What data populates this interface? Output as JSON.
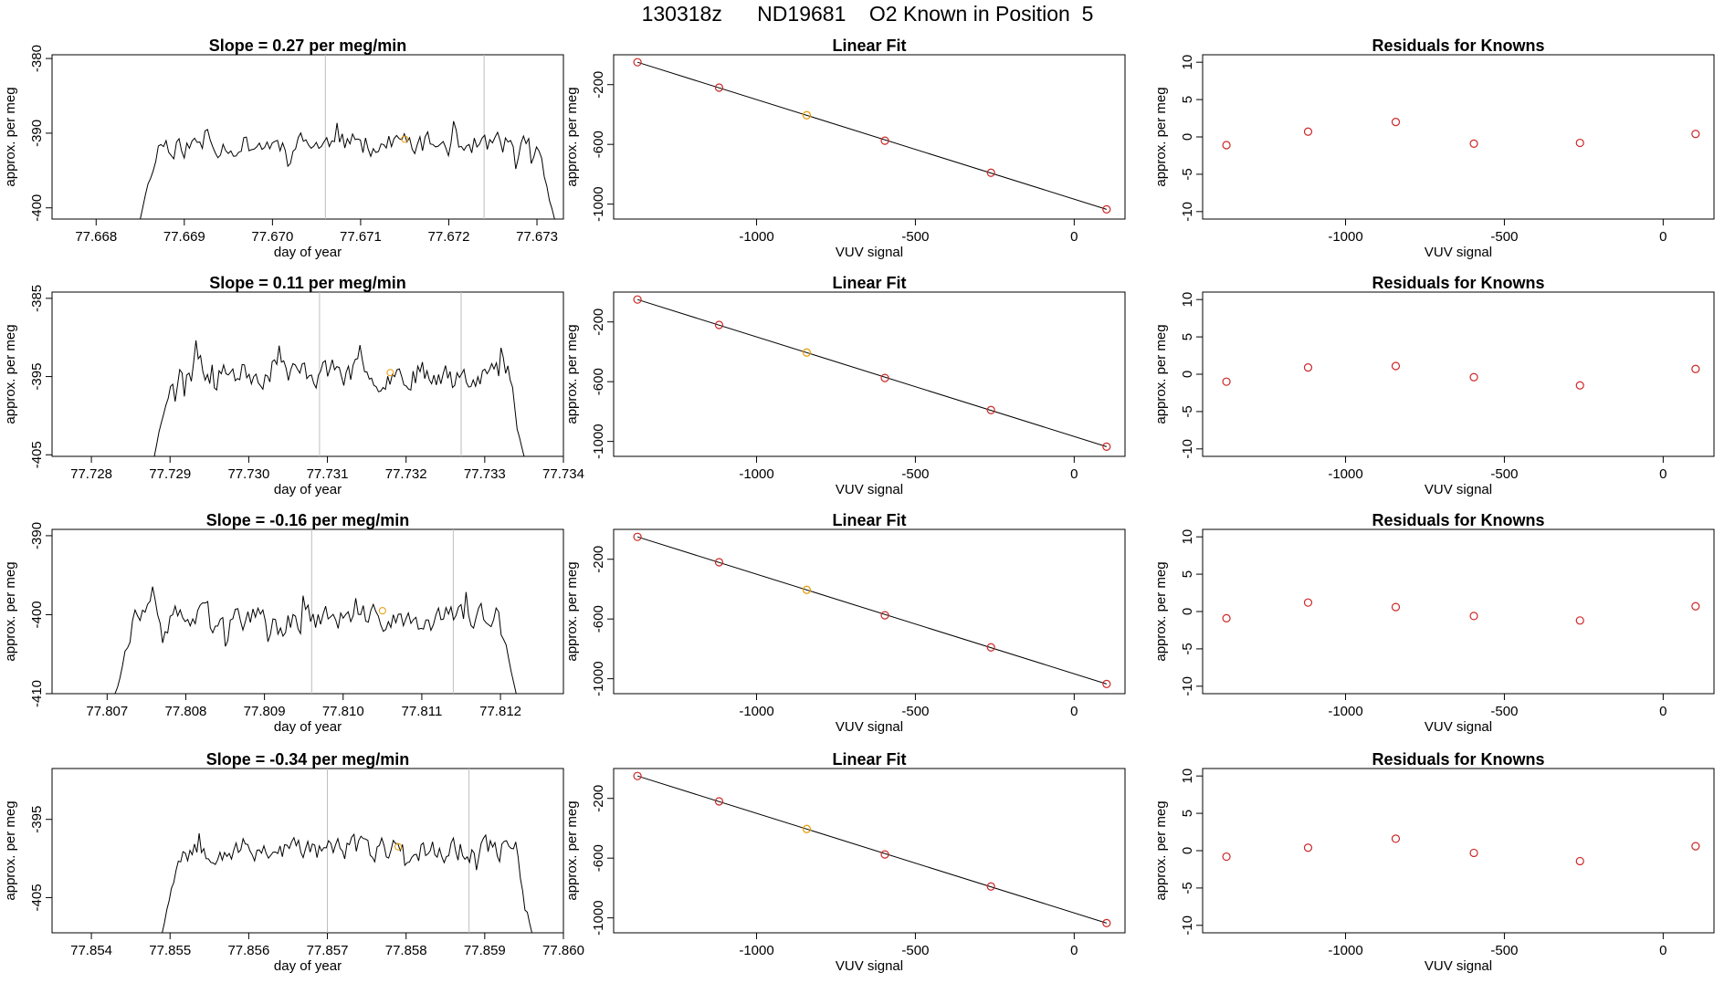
{
  "page_title": "130318z      ND19681    O2 Known in Position  5",
  "colors": {
    "line": "#000000",
    "guide": "#bebebe",
    "red_point": "#cd2626",
    "orange_point": "#e69a00"
  },
  "chart_data": [
    {
      "type": "line",
      "row": 1,
      "column": 1,
      "title": "Slope =  0.27  per meg/min",
      "xlabel": "day of year",
      "ylabel": "approx. per meg",
      "xlim": [
        77.6675,
        77.6733
      ],
      "ylim": [
        -401.5,
        -379.5
      ],
      "x_ticks": [
        77.668,
        77.669,
        77.67,
        77.671,
        77.672,
        77.673
      ],
      "x_tick_labels": [
        "77.668",
        "77.669",
        "77.670",
        "77.671",
        "77.672",
        "77.673"
      ],
      "y_ticks": [
        -380,
        -390,
        -400
      ],
      "y_tick_labels": [
        "-380",
        "-390",
        "-400"
      ],
      "trace_start": 77.6685,
      "trace_end": 77.6732,
      "trace_level": -391.5,
      "trace_edge_start": -401.5,
      "trace_edge_end": -401.5,
      "trace_amplitude": 1.8,
      "trace_seed": 11,
      "vlines": [
        77.6706,
        77.6724
      ],
      "marker": {
        "x": 77.6715,
        "y": -390.8
      }
    },
    {
      "type": "scatter",
      "row": 1,
      "column": 2,
      "title": "Linear Fit",
      "xlabel": "VUV signal",
      "ylabel": "approx. per meg",
      "xlim": [
        -1450,
        160
      ],
      "ylim": [
        -1100,
        0
      ],
      "x_ticks": [
        -1000,
        -500,
        0
      ],
      "x_tick_labels": [
        "-1000",
        "-500",
        "0"
      ],
      "y_ticks": [
        -200,
        -600,
        -1000
      ],
      "y_tick_labels": [
        "-200",
        "-600",
        "-1000"
      ],
      "points": [
        [
          -1375,
          -50
        ],
        [
          -1118,
          -220
        ],
        [
          -842,
          -405
        ],
        [
          -596,
          -575
        ],
        [
          -262,
          -790
        ],
        [
          102,
          -1035
        ]
      ],
      "point_colors": [
        "red",
        "red",
        "orange",
        "red",
        "red",
        "red"
      ],
      "fit_line": [
        [
          -1375,
          -50
        ],
        [
          102,
          -1035
        ]
      ]
    },
    {
      "type": "scatter",
      "row": 1,
      "column": 3,
      "title": "Residuals for Knowns",
      "xlabel": "VUV signal",
      "ylabel": "approx. per meg",
      "xlim": [
        -1450,
        160
      ],
      "ylim": [
        -11,
        11
      ],
      "x_ticks": [
        -1000,
        -500,
        0
      ],
      "x_tick_labels": [
        "-1000",
        "-500",
        "0"
      ],
      "y_ticks": [
        10,
        5,
        0,
        -5,
        -10
      ],
      "y_tick_labels": [
        "10",
        "5",
        "0",
        "-5",
        "-10"
      ],
      "points": [
        [
          -1375,
          -1.1
        ],
        [
          -1118,
          0.7
        ],
        [
          -842,
          2.0
        ],
        [
          -596,
          -0.9
        ],
        [
          -262,
          -0.8
        ],
        [
          102,
          0.4
        ]
      ],
      "point_colors": [
        "red",
        "red",
        "red",
        "red",
        "red",
        "red"
      ]
    },
    {
      "type": "line",
      "row": 2,
      "column": 1,
      "title": "Slope =  0.11  per meg/min",
      "xlabel": "day of year",
      "ylabel": "approx. per meg",
      "xlim": [
        77.7275,
        77.734
      ],
      "ylim": [
        -405.2,
        -384.2
      ],
      "x_ticks": [
        77.728,
        77.729,
        77.73,
        77.731,
        77.732,
        77.733,
        77.734
      ],
      "x_tick_labels": [
        "77.728",
        "77.729",
        "77.730",
        "77.731",
        "77.732",
        "77.733",
        "77.734"
      ],
      "y_ticks": [
        -385,
        -395,
        -405
      ],
      "y_tick_labels": [
        "-385",
        "-395",
        "-405"
      ],
      "trace_start": 77.7288,
      "trace_end": 77.7335,
      "trace_level": -394.5,
      "trace_edge_start": -405.2,
      "trace_edge_end": -405.2,
      "trace_amplitude": 1.9,
      "trace_seed": 23,
      "vlines": [
        77.7309,
        77.7327
      ],
      "marker": {
        "x": 77.7318,
        "y": -394.5
      }
    },
    {
      "type": "scatter",
      "row": 2,
      "column": 2,
      "title": "Linear Fit",
      "xlabel": "VUV signal",
      "ylabel": "approx. per meg",
      "xlim": [
        -1450,
        160
      ],
      "ylim": [
        -1100,
        0
      ],
      "x_ticks": [
        -1000,
        -500,
        0
      ],
      "x_tick_labels": [
        "-1000",
        "-500",
        "0"
      ],
      "y_ticks": [
        -200,
        -600,
        -1000
      ],
      "y_tick_labels": [
        "-200",
        "-600",
        "-1000"
      ],
      "points": [
        [
          -1375,
          -50
        ],
        [
          -1118,
          -220
        ],
        [
          -842,
          -405
        ],
        [
          -596,
          -575
        ],
        [
          -262,
          -790
        ],
        [
          102,
          -1035
        ]
      ],
      "point_colors": [
        "red",
        "red",
        "orange",
        "red",
        "red",
        "red"
      ],
      "fit_line": [
        [
          -1375,
          -50
        ],
        [
          102,
          -1035
        ]
      ]
    },
    {
      "type": "scatter",
      "row": 2,
      "column": 3,
      "title": "Residuals for Knowns",
      "xlabel": "VUV signal",
      "ylabel": "approx. per meg",
      "xlim": [
        -1450,
        160
      ],
      "ylim": [
        -11,
        11
      ],
      "x_ticks": [
        -1000,
        -500,
        0
      ],
      "x_tick_labels": [
        "-1000",
        "-500",
        "0"
      ],
      "y_ticks": [
        10,
        5,
        0,
        -5,
        -10
      ],
      "y_tick_labels": [
        "10",
        "5",
        "0",
        "-5",
        "-10"
      ],
      "points": [
        [
          -1375,
          -1.0
        ],
        [
          -1118,
          0.9
        ],
        [
          -842,
          1.1
        ],
        [
          -596,
          -0.4
        ],
        [
          -262,
          -1.5
        ],
        [
          102,
          0.7
        ]
      ],
      "point_colors": [
        "red",
        "red",
        "red",
        "red",
        "red",
        "red"
      ]
    },
    {
      "type": "line",
      "row": 3,
      "column": 1,
      "title": "Slope =  -0.16  per meg/min",
      "xlabel": "day of year",
      "ylabel": "approx. per meg",
      "xlim": [
        77.8063,
        77.8128
      ],
      "ylim": [
        -410,
        -389.2
      ],
      "x_ticks": [
        77.807,
        77.808,
        77.809,
        77.81,
        77.811,
        77.812
      ],
      "x_tick_labels": [
        "77.807",
        "77.808",
        "77.809",
        "77.810",
        "77.811",
        "77.812"
      ],
      "y_ticks": [
        -390,
        -400,
        -410
      ],
      "y_tick_labels": [
        "-390",
        "-400",
        "-410"
      ],
      "trace_start": 77.8071,
      "trace_end": 77.8122,
      "trace_level": -400.5,
      "trace_edge_start": -410,
      "trace_edge_end": -410,
      "trace_amplitude": 1.9,
      "trace_seed": 37,
      "vlines": [
        77.8096,
        77.8114
      ],
      "marker": {
        "x": 77.8105,
        "y": -399.5
      }
    },
    {
      "type": "scatter",
      "row": 3,
      "column": 2,
      "title": "Linear Fit",
      "xlabel": "VUV signal",
      "ylabel": "approx. per meg",
      "xlim": [
        -1450,
        160
      ],
      "ylim": [
        -1100,
        0
      ],
      "x_ticks": [
        -1000,
        -500,
        0
      ],
      "x_tick_labels": [
        "-1000",
        "-500",
        "0"
      ],
      "y_ticks": [
        -200,
        -600,
        -1000
      ],
      "y_tick_labels": [
        "-200",
        "-600",
        "-1000"
      ],
      "points": [
        [
          -1375,
          -50
        ],
        [
          -1118,
          -220
        ],
        [
          -842,
          -405
        ],
        [
          -596,
          -575
        ],
        [
          -262,
          -790
        ],
        [
          102,
          -1035
        ]
      ],
      "point_colors": [
        "red",
        "red",
        "orange",
        "red",
        "red",
        "red"
      ],
      "fit_line": [
        [
          -1375,
          -50
        ],
        [
          102,
          -1035
        ]
      ]
    },
    {
      "type": "scatter",
      "row": 3,
      "column": 3,
      "title": "Residuals for Knowns",
      "xlabel": "VUV signal",
      "ylabel": "approx. per meg",
      "xlim": [
        -1450,
        160
      ],
      "ylim": [
        -11,
        11
      ],
      "x_ticks": [
        -1000,
        -500,
        0
      ],
      "x_tick_labels": [
        "-1000",
        "-500",
        "0"
      ],
      "y_ticks": [
        10,
        5,
        0,
        -5,
        -10
      ],
      "y_tick_labels": [
        "10",
        "5",
        "0",
        "-5",
        "-10"
      ],
      "points": [
        [
          -1375,
          -0.9
        ],
        [
          -1118,
          1.2
        ],
        [
          -842,
          0.6
        ],
        [
          -596,
          -0.6
        ],
        [
          -262,
          -1.2
        ],
        [
          102,
          0.7
        ]
      ],
      "point_colors": [
        "red",
        "red",
        "red",
        "red",
        "red",
        "red"
      ]
    },
    {
      "type": "line",
      "row": 4,
      "column": 1,
      "title": "Slope =  -0.34  per meg/min",
      "xlabel": "day of year",
      "ylabel": "approx. per meg",
      "xlim": [
        77.8535,
        77.86
      ],
      "ylim": [
        -409.5,
        -388.5
      ],
      "x_ticks": [
        77.854,
        77.855,
        77.856,
        77.857,
        77.858,
        77.859,
        77.86
      ],
      "x_tick_labels": [
        "77.854",
        "77.855",
        "77.856",
        "77.857",
        "77.858",
        "77.859",
        "77.860"
      ],
      "y_ticks": [
        -395,
        -405
      ],
      "y_tick_labels": [
        "-395",
        "-405"
      ],
      "trace_start": 77.8549,
      "trace_end": 77.8596,
      "trace_level": -398.8,
      "trace_edge_start": -409.5,
      "trace_edge_end": -409.5,
      "trace_amplitude": 1.8,
      "trace_seed": 53,
      "vlines": [
        77.857,
        77.8588
      ],
      "marker": {
        "x": 77.8579,
        "y": -398.5
      }
    },
    {
      "type": "scatter",
      "row": 4,
      "column": 2,
      "title": "Linear Fit",
      "xlabel": "VUV signal",
      "ylabel": "approx. per meg",
      "xlim": [
        -1450,
        160
      ],
      "ylim": [
        -1100,
        0
      ],
      "x_ticks": [
        -1000,
        -500,
        0
      ],
      "x_tick_labels": [
        "-1000",
        "-500",
        "0"
      ],
      "y_ticks": [
        -200,
        -600,
        -1000
      ],
      "y_tick_labels": [
        "-200",
        "-600",
        "-1000"
      ],
      "points": [
        [
          -1375,
          -50
        ],
        [
          -1118,
          -220
        ],
        [
          -842,
          -405
        ],
        [
          -596,
          -575
        ],
        [
          -262,
          -790
        ],
        [
          102,
          -1035
        ]
      ],
      "point_colors": [
        "red",
        "red",
        "orange",
        "red",
        "red",
        "red"
      ],
      "fit_line": [
        [
          -1375,
          -50
        ],
        [
          102,
          -1035
        ]
      ]
    },
    {
      "type": "scatter",
      "row": 4,
      "column": 3,
      "title": "Residuals for Knowns",
      "xlabel": "VUV signal",
      "ylabel": "approx. per meg",
      "xlim": [
        -1450,
        160
      ],
      "ylim": [
        -11,
        11
      ],
      "x_ticks": [
        -1000,
        -500,
        0
      ],
      "x_tick_labels": [
        "-1000",
        "-500",
        "0"
      ],
      "y_ticks": [
        10,
        5,
        0,
        -5,
        -10
      ],
      "y_tick_labels": [
        "10",
        "5",
        "0",
        "-5",
        "-10"
      ],
      "points": [
        [
          -1375,
          -0.8
        ],
        [
          -1118,
          0.4
        ],
        [
          -842,
          1.6
        ],
        [
          -596,
          -0.3
        ],
        [
          -262,
          -1.4
        ],
        [
          102,
          0.6
        ]
      ],
      "point_colors": [
        "red",
        "red",
        "red",
        "red",
        "red",
        "red"
      ]
    }
  ]
}
